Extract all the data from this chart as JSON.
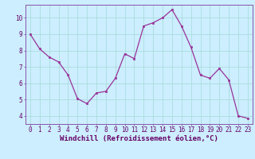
{
  "x": [
    0,
    1,
    2,
    3,
    4,
    5,
    6,
    7,
    8,
    9,
    10,
    11,
    12,
    13,
    14,
    15,
    16,
    17,
    18,
    19,
    20,
    21,
    22,
    23
  ],
  "y": [
    9.0,
    8.1,
    7.6,
    7.3,
    6.5,
    5.05,
    4.75,
    5.4,
    5.5,
    6.3,
    7.8,
    7.5,
    9.5,
    9.7,
    10.0,
    10.5,
    9.5,
    8.2,
    6.5,
    6.3,
    6.9,
    6.2,
    4.0,
    3.85
  ],
  "line_color": "#993399",
  "marker": "s",
  "marker_size": 2,
  "bg_color": "#cceeff",
  "grid_color": "#aadddd",
  "xlabel": "Windchill (Refroidissement éolien,°C)",
  "xlim": [
    -0.5,
    23.5
  ],
  "ylim": [
    3.5,
    10.8
  ],
  "yticks": [
    4,
    5,
    6,
    7,
    8,
    9,
    10
  ],
  "xticks": [
    0,
    1,
    2,
    3,
    4,
    5,
    6,
    7,
    8,
    9,
    10,
    11,
    12,
    13,
    14,
    15,
    16,
    17,
    18,
    19,
    20,
    21,
    22,
    23
  ],
  "tick_label_fontsize": 5.5,
  "xlabel_fontsize": 6.5,
  "text_color": "#660066",
  "spine_color": "#8855aa"
}
